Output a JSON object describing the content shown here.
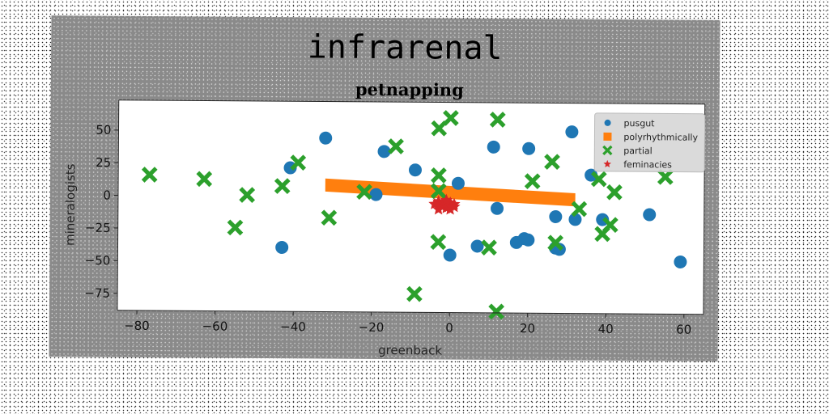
{
  "chart_data": {
    "type": "scatter",
    "suptitle": "infrarenal",
    "title": "petnapping",
    "xlabel": "greenback",
    "ylabel": "mineralogists",
    "xlim": [
      -85,
      65
    ],
    "ylim": [
      -88,
      73
    ],
    "xticks": [
      -80,
      -60,
      -40,
      -20,
      0,
      20,
      40,
      60
    ],
    "yticks": [
      -75,
      -50,
      -25,
      0,
      25,
      50
    ],
    "legend_position": "top-right",
    "series": [
      {
        "name": "pusgut",
        "marker": "circle",
        "color": "#1f77b4",
        "points": [
          [
            -32,
            45
          ],
          [
            -41,
            22
          ],
          [
            -43,
            -39
          ],
          [
            -17,
            35
          ],
          [
            -19,
            2
          ],
          [
            -9,
            21
          ],
          [
            2,
            11
          ],
          [
            11,
            39
          ],
          [
            20,
            38
          ],
          [
            31,
            51
          ],
          [
            36,
            18
          ],
          [
            12,
            -8
          ],
          [
            27,
            -14
          ],
          [
            32,
            -16
          ],
          [
            39,
            -16
          ],
          [
            51,
            -12
          ],
          [
            59,
            -48
          ],
          [
            0,
            -44
          ],
          [
            7,
            -37
          ],
          [
            17,
            -34
          ],
          [
            19,
            -31
          ],
          [
            20,
            -32
          ],
          [
            27,
            -38
          ],
          [
            28,
            -39
          ]
        ]
      },
      {
        "name": "polyrhythmically",
        "marker": "square",
        "color": "#ff7f0e",
        "band": {
          "x_start": -32,
          "y_start": 9,
          "x_end": 32,
          "y_end": -1,
          "half_width": 5
        }
      },
      {
        "name": "partial",
        "marker": "x",
        "color": "#2ca02c",
        "points": [
          [
            -77,
            16
          ],
          [
            -63,
            13
          ],
          [
            -52,
            1
          ],
          [
            -55,
            -24
          ],
          [
            -43,
            8
          ],
          [
            -39,
            26
          ],
          [
            -31,
            -16
          ],
          [
            -22,
            4
          ],
          [
            -14,
            39
          ],
          [
            -3,
            53
          ],
          [
            0,
            61
          ],
          [
            12,
            60
          ],
          [
            -3,
            17
          ],
          [
            -3,
            5
          ],
          [
            21,
            13
          ],
          [
            26,
            28
          ],
          [
            38,
            15
          ],
          [
            42,
            5
          ],
          [
            33,
            -8
          ],
          [
            41,
            -20
          ],
          [
            39,
            -27
          ],
          [
            55,
            17
          ],
          [
            -3,
            -34
          ],
          [
            10,
            -38
          ],
          [
            27,
            -34
          ],
          [
            -9,
            -74
          ],
          [
            12,
            -87
          ]
        ]
      },
      {
        "name": "feminacies",
        "marker": "star",
        "color": "#d62728",
        "points": [
          [
            -3,
            -3
          ],
          [
            -2,
            -5
          ],
          [
            -1,
            -3
          ],
          [
            0,
            -4
          ],
          [
            -2,
            -7
          ],
          [
            -1,
            -8
          ],
          [
            0,
            -6
          ],
          [
            1,
            -5
          ],
          [
            -3,
            -9
          ],
          [
            -4,
            -5
          ],
          [
            -1,
            -2
          ],
          [
            0,
            -9
          ],
          [
            1,
            -7
          ]
        ]
      }
    ]
  }
}
